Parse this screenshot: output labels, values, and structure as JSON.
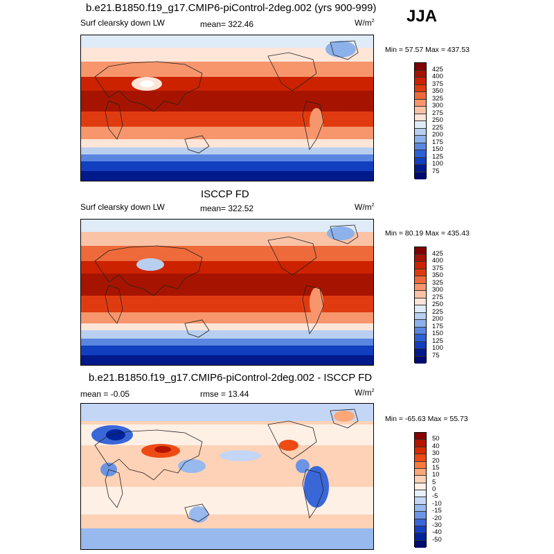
{
  "season": "JJA",
  "panels": [
    {
      "title": "b.e21.B1850.f19_g17.CMIP6-piControl-2deg.002 (yrs 900-999)",
      "left_label": "Surf clearsky down LW",
      "center_label": "mean= 322.46",
      "units": "W/m",
      "units_sup": "2",
      "minmax": "Min =  57.57 Max = 437.53",
      "levels": [
        "425",
        "400",
        "375",
        "350",
        "325",
        "300",
        "275",
        "250",
        "225",
        "200",
        "175",
        "150",
        "125",
        "100",
        "75"
      ],
      "colors": [
        "#7f0000",
        "#a61400",
        "#cc2200",
        "#e03b10",
        "#ef6a3a",
        "#f7966c",
        "#fbc3a6",
        "#fde5d8",
        "#dfebf7",
        "#b8cff0",
        "#8db1ea",
        "#5b86e0",
        "#2d5fd6",
        "#123fc0",
        "#001a8c",
        "#000a70"
      ]
    },
    {
      "title": "ISCCP FD",
      "left_label": "Surf clearsky down LW",
      "center_label": "mean= 322.52",
      "units": "W/m",
      "units_sup": "2",
      "minmax": "Min =  80.19 Max = 435.43",
      "levels": [
        "425",
        "400",
        "375",
        "350",
        "325",
        "300",
        "275",
        "250",
        "225",
        "200",
        "175",
        "150",
        "125",
        "100",
        "75"
      ],
      "colors": [
        "#7f0000",
        "#a61400",
        "#cc2200",
        "#e03b10",
        "#ef6a3a",
        "#f7966c",
        "#fbc3a6",
        "#fde5d8",
        "#dfebf7",
        "#b8cff0",
        "#8db1ea",
        "#5b86e0",
        "#2d5fd6",
        "#123fc0",
        "#001a8c",
        "#000a70"
      ]
    },
    {
      "title": "b.e21.B1850.f19_g17.CMIP6-piControl-2deg.002 - ISCCP FD",
      "left_label": "mean =  -0.05",
      "center_label": "rmse =  13.44",
      "units": "W/m",
      "units_sup": "2",
      "minmax": "Min = -65.63 Max =  55.73",
      "levels": [
        "50",
        "40",
        "30",
        "20",
        "15",
        "10",
        "5",
        "0",
        "-5",
        "-10",
        "-15",
        "-20",
        "-30",
        "-40",
        "-50"
      ],
      "colors": [
        "#8b0000",
        "#b51400",
        "#d92a00",
        "#ee4a14",
        "#f77a3e",
        "#fba778",
        "#fdd2b6",
        "#fff0e6",
        "#e7f0fb",
        "#c3d6f5",
        "#98b9ee",
        "#6b94e4",
        "#3a67d8",
        "#1540c2",
        "#00239c",
        "#000c6e"
      ]
    }
  ]
}
